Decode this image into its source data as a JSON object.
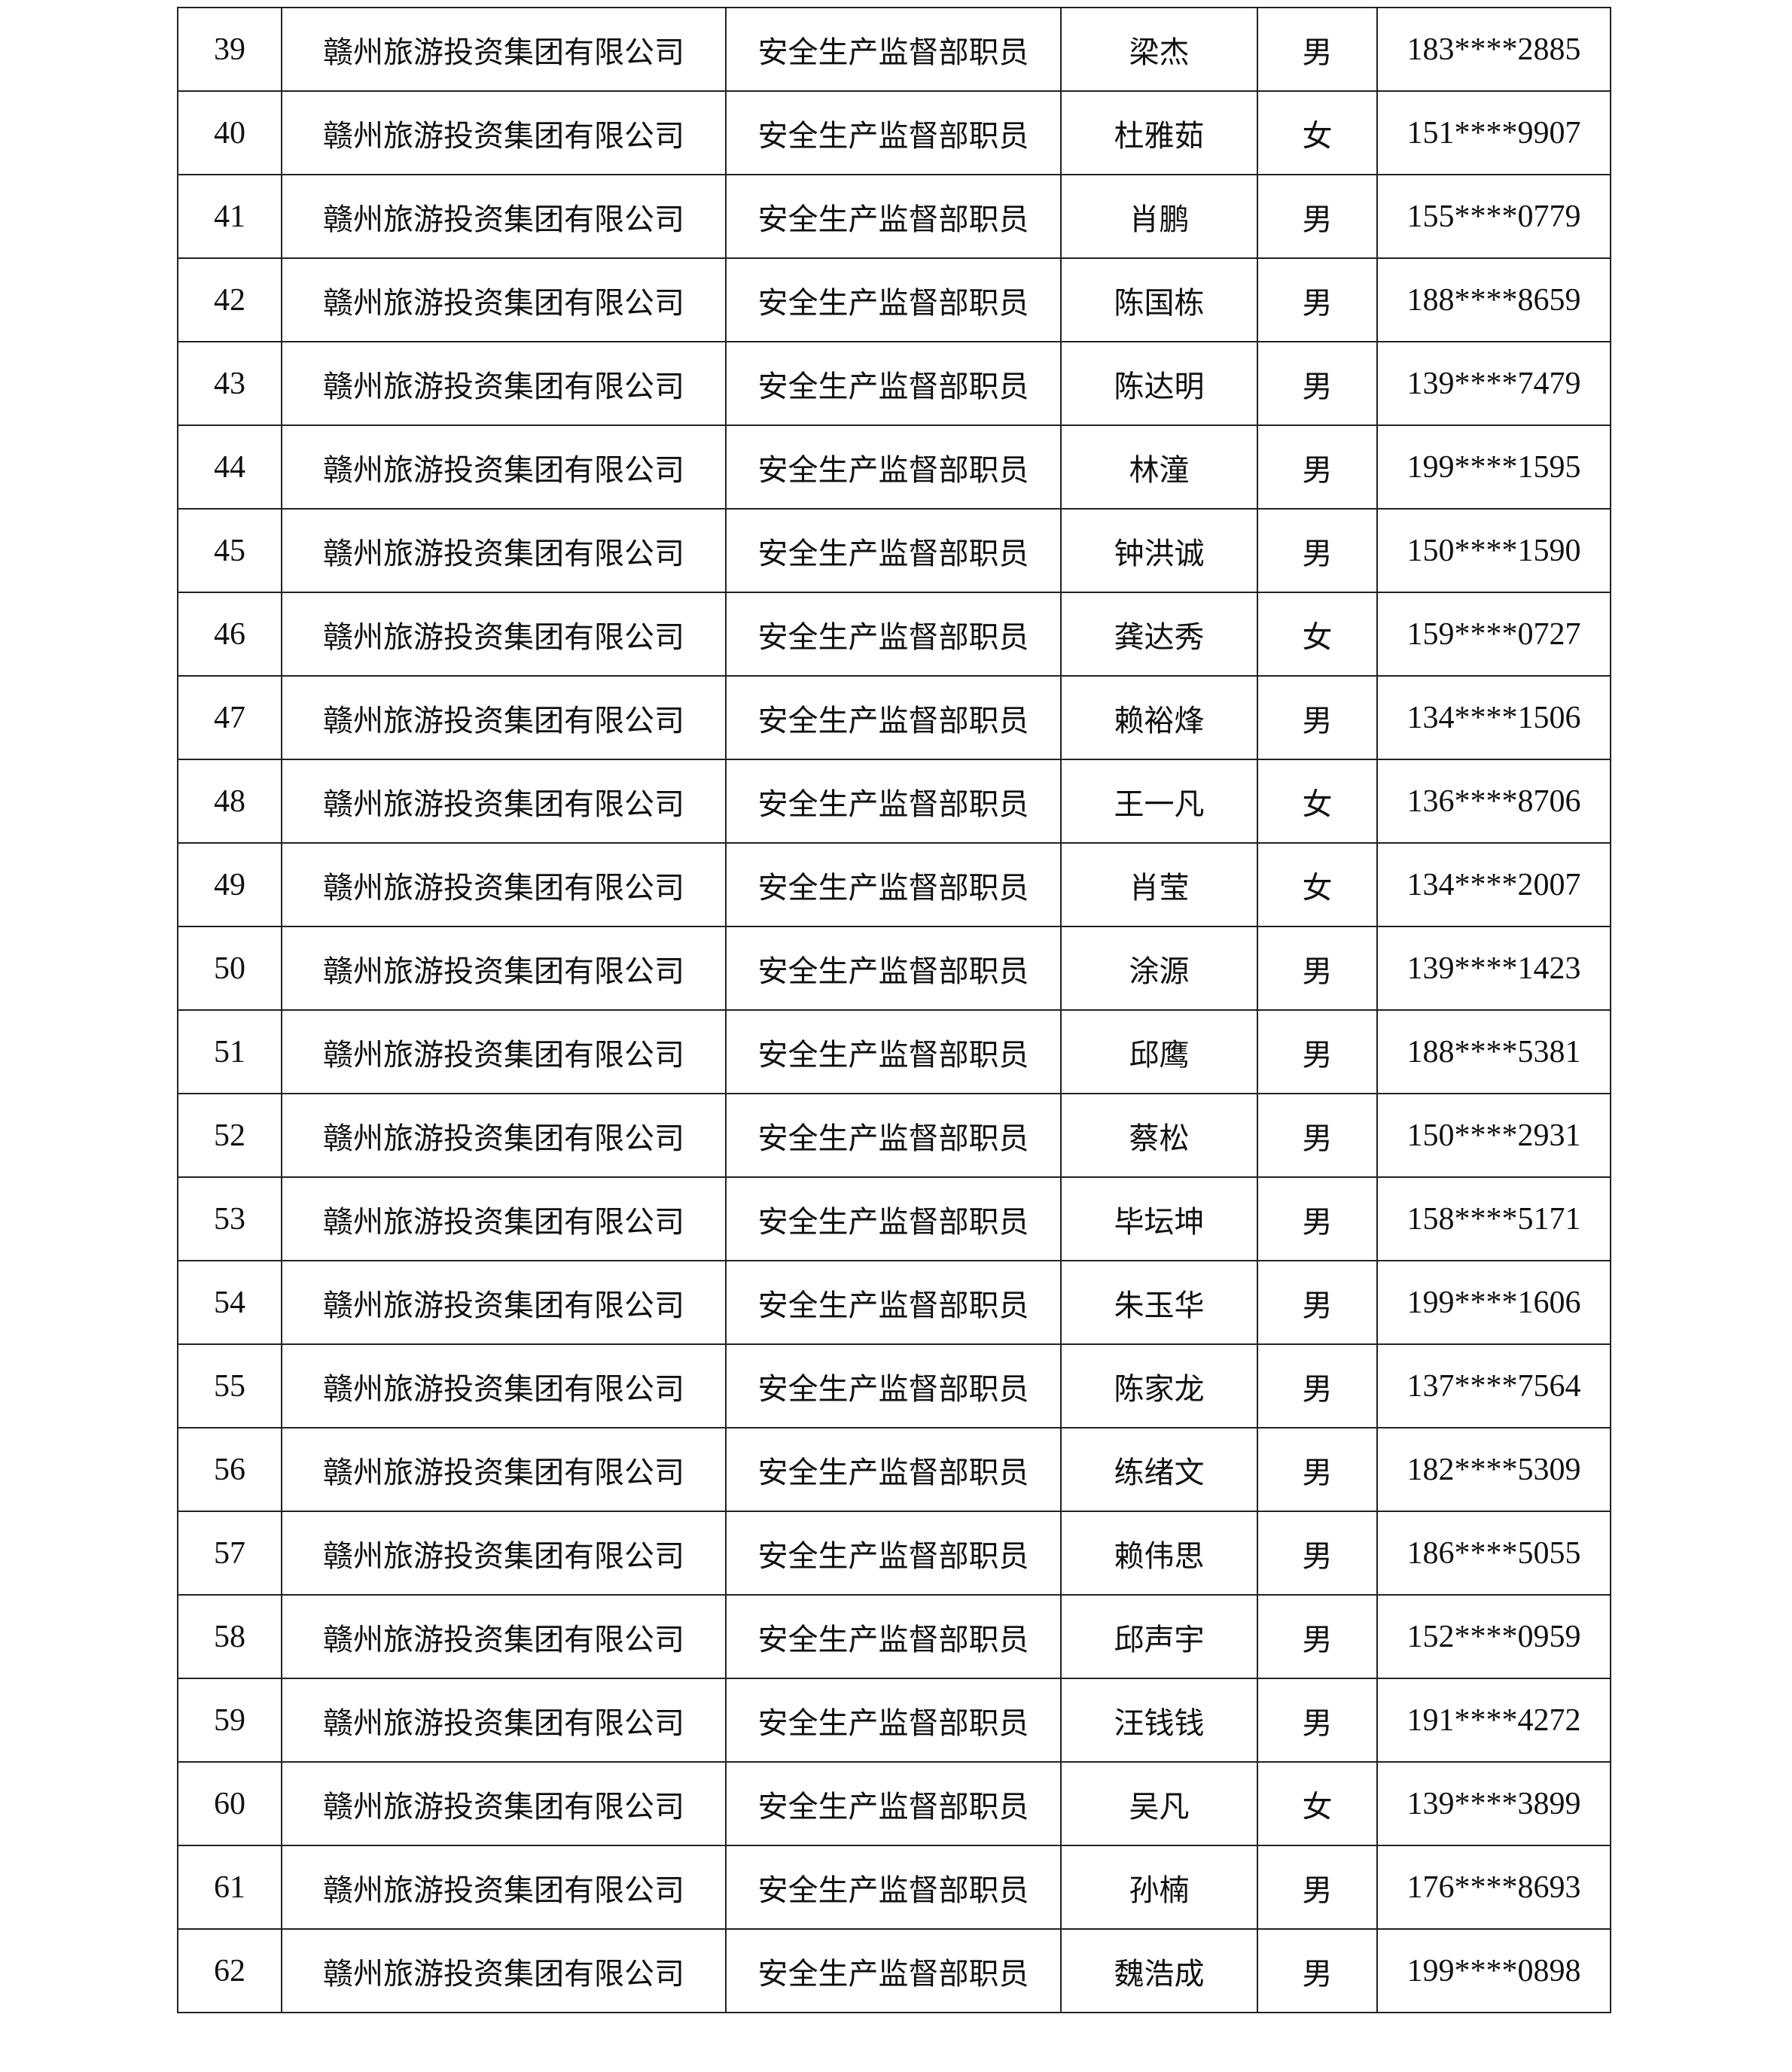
{
  "table": {
    "rows": [
      {
        "no": "39",
        "company": "赣州旅游投资集团有限公司",
        "position": "安全生产监督部职员",
        "name": "梁杰",
        "gender": "男",
        "phone": "183****2885"
      },
      {
        "no": "40",
        "company": "赣州旅游投资集团有限公司",
        "position": "安全生产监督部职员",
        "name": "杜雅茹",
        "gender": "女",
        "phone": "151****9907"
      },
      {
        "no": "41",
        "company": "赣州旅游投资集团有限公司",
        "position": "安全生产监督部职员",
        "name": "肖鹏",
        "gender": "男",
        "phone": "155****0779"
      },
      {
        "no": "42",
        "company": "赣州旅游投资集团有限公司",
        "position": "安全生产监督部职员",
        "name": "陈国栋",
        "gender": "男",
        "phone": "188****8659"
      },
      {
        "no": "43",
        "company": "赣州旅游投资集团有限公司",
        "position": "安全生产监督部职员",
        "name": "陈达明",
        "gender": "男",
        "phone": "139****7479"
      },
      {
        "no": "44",
        "company": "赣州旅游投资集团有限公司",
        "position": "安全生产监督部职员",
        "name": "林潼",
        "gender": "男",
        "phone": "199****1595"
      },
      {
        "no": "45",
        "company": "赣州旅游投资集团有限公司",
        "position": "安全生产监督部职员",
        "name": "钟洪诚",
        "gender": "男",
        "phone": "150****1590"
      },
      {
        "no": "46",
        "company": "赣州旅游投资集团有限公司",
        "position": "安全生产监督部职员",
        "name": "龚达秀",
        "gender": "女",
        "phone": "159****0727"
      },
      {
        "no": "47",
        "company": "赣州旅游投资集团有限公司",
        "position": "安全生产监督部职员",
        "name": "赖裕烽",
        "gender": "男",
        "phone": "134****1506"
      },
      {
        "no": "48",
        "company": "赣州旅游投资集团有限公司",
        "position": "安全生产监督部职员",
        "name": "王一凡",
        "gender": "女",
        "phone": "136****8706"
      },
      {
        "no": "49",
        "company": "赣州旅游投资集团有限公司",
        "position": "安全生产监督部职员",
        "name": "肖莹",
        "gender": "女",
        "phone": "134****2007"
      },
      {
        "no": "50",
        "company": "赣州旅游投资集团有限公司",
        "position": "安全生产监督部职员",
        "name": "涂源",
        "gender": "男",
        "phone": "139****1423"
      },
      {
        "no": "51",
        "company": "赣州旅游投资集团有限公司",
        "position": "安全生产监督部职员",
        "name": "邱鹰",
        "gender": "男",
        "phone": "188****5381"
      },
      {
        "no": "52",
        "company": "赣州旅游投资集团有限公司",
        "position": "安全生产监督部职员",
        "name": "蔡松",
        "gender": "男",
        "phone": "150****2931"
      },
      {
        "no": "53",
        "company": "赣州旅游投资集团有限公司",
        "position": "安全生产监督部职员",
        "name": "毕坛坤",
        "gender": "男",
        "phone": "158****5171"
      },
      {
        "no": "54",
        "company": "赣州旅游投资集团有限公司",
        "position": "安全生产监督部职员",
        "name": "朱玉华",
        "gender": "男",
        "phone": "199****1606"
      },
      {
        "no": "55",
        "company": "赣州旅游投资集团有限公司",
        "position": "安全生产监督部职员",
        "name": "陈家龙",
        "gender": "男",
        "phone": "137****7564"
      },
      {
        "no": "56",
        "company": "赣州旅游投资集团有限公司",
        "position": "安全生产监督部职员",
        "name": "练绪文",
        "gender": "男",
        "phone": "182****5309"
      },
      {
        "no": "57",
        "company": "赣州旅游投资集团有限公司",
        "position": "安全生产监督部职员",
        "name": "赖伟思",
        "gender": "男",
        "phone": "186****5055"
      },
      {
        "no": "58",
        "company": "赣州旅游投资集团有限公司",
        "position": "安全生产监督部职员",
        "name": "邱声宇",
        "gender": "男",
        "phone": "152****0959"
      },
      {
        "no": "59",
        "company": "赣州旅游投资集团有限公司",
        "position": "安全生产监督部职员",
        "name": "汪钱钱",
        "gender": "男",
        "phone": "191****4272"
      },
      {
        "no": "60",
        "company": "赣州旅游投资集团有限公司",
        "position": "安全生产监督部职员",
        "name": "吴凡",
        "gender": "女",
        "phone": "139****3899"
      },
      {
        "no": "61",
        "company": "赣州旅游投资集团有限公司",
        "position": "安全生产监督部职员",
        "name": "孙楠",
        "gender": "男",
        "phone": "176****8693"
      },
      {
        "no": "62",
        "company": "赣州旅游投资集团有限公司",
        "position": "安全生产监督部职员",
        "name": "魏浩成",
        "gender": "男",
        "phone": "199****0898"
      }
    ]
  }
}
